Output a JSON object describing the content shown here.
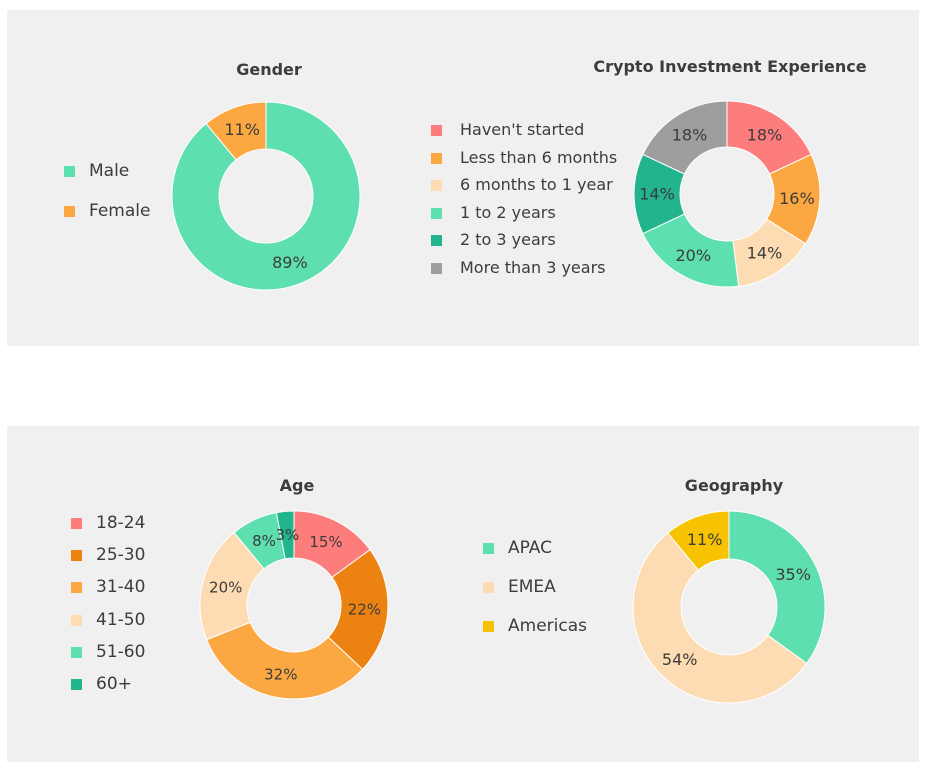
{
  "chart_data": [
    {
      "id": "gender",
      "type": "pie",
      "title": "Gender",
      "labels": [
        "Male",
        "Female"
      ],
      "values": [
        89,
        11
      ],
      "value_labels": [
        "89%",
        "11%"
      ],
      "colors": [
        "#5ddfb0",
        "#fba843"
      ],
      "legend": "left"
    },
    {
      "id": "experience",
      "type": "pie",
      "title": "Crypto Investment Experience",
      "labels": [
        "Haven't started",
        "Less than 6 months",
        "6 months to 1 year",
        "1 to 2 years",
        "2 to 3 years",
        "More than 3 years"
      ],
      "values": [
        18,
        16,
        14,
        20,
        14,
        18
      ],
      "value_labels": [
        "18%",
        "16%",
        "14%",
        "20%",
        "14%",
        "18%"
      ],
      "colors": [
        "#fd7c7c",
        "#fba843",
        "#fddcb3",
        "#5ddfb0",
        "#22b48c",
        "#9e9e9e"
      ],
      "legend": "left"
    },
    {
      "id": "age",
      "type": "pie",
      "title": "Age",
      "labels": [
        "18-24",
        "25-30",
        "31-40",
        "41-50",
        "51-60",
        "60+"
      ],
      "values": [
        15,
        22,
        32,
        20,
        8,
        3
      ],
      "value_labels": [
        "15%",
        "22%",
        "32%",
        "20%",
        "8%",
        "3%"
      ],
      "colors": [
        "#fd7c7c",
        "#ec8211",
        "#fba843",
        "#fddcb3",
        "#5ddfb0",
        "#22b48c"
      ],
      "legend": "left"
    },
    {
      "id": "geography",
      "type": "pie",
      "title": "Geography",
      "labels": [
        "APAC",
        "EMEA",
        "Americas"
      ],
      "values": [
        35,
        54,
        11
      ],
      "value_labels": [
        "35%",
        "54%",
        "11%"
      ],
      "colors": [
        "#5ddfb0",
        "#fddcb3",
        "#f7c300"
      ],
      "legend": "left"
    }
  ]
}
